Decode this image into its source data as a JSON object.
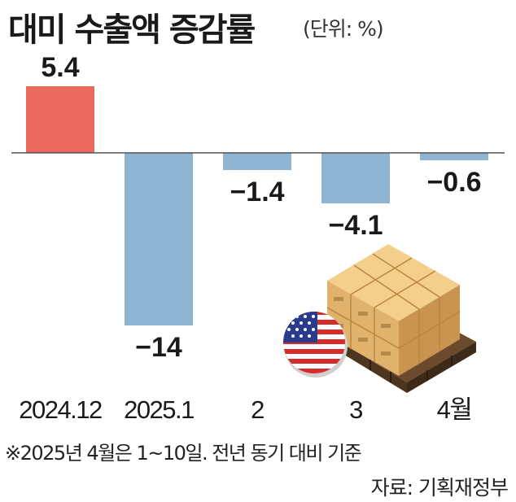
{
  "title": "대미 수출액 증감률",
  "unit_label": "(단위: %)",
  "footnote": "※2025년 4월은 1~10일. 전년 동기 대비 기준",
  "source": "자료: 기획재정부",
  "colors": {
    "positive": "#ea6a5e",
    "negative": "#8fb5d2",
    "axis": "#555555"
  },
  "chart_data": {
    "type": "bar",
    "title": "대미 수출액 증감률",
    "xlabel": "",
    "ylabel": "",
    "categories": [
      "2024.12",
      "2025.1",
      "2",
      "3",
      "4월"
    ],
    "values": [
      5.4,
      -14,
      -1.4,
      -4.1,
      -0.6
    ],
    "value_labels": [
      "5.4",
      "−14",
      "−1.4",
      "−4.1",
      "−0.6"
    ],
    "ylim": [
      -14,
      5.4
    ],
    "grid": false,
    "legend": "none"
  }
}
